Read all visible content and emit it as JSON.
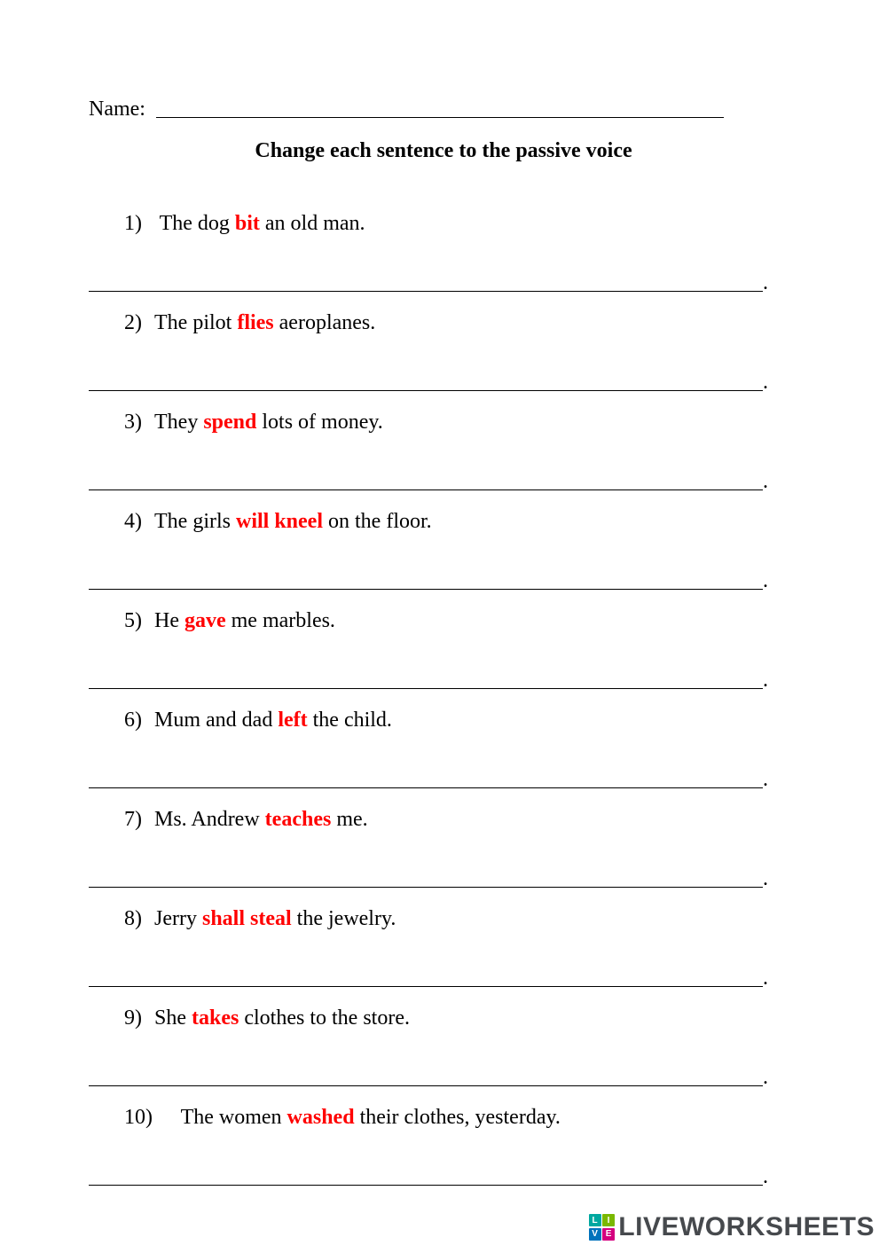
{
  "name_label": "Name:",
  "title": "Change each sentence to the passive voice",
  "verb_color": "#ff0000",
  "text_color": "#000000",
  "background_color": "#ffffff",
  "font_family": "Times New Roman",
  "title_fontsize": 24,
  "body_fontsize": 24,
  "questions": [
    {
      "num": "1)",
      "before": " The dog ",
      "verb": "bit",
      "after": " an old man."
    },
    {
      "num": "2)",
      "before": "The pilot ",
      "verb": "flies",
      "after": " aeroplanes."
    },
    {
      "num": "3)",
      "before": "They ",
      "verb": "spend",
      "after": " lots of money."
    },
    {
      "num": "4)",
      "before": "The girls ",
      "verb": "will kneel",
      "after": " on the floor."
    },
    {
      "num": "5)",
      "before": "He ",
      "verb": "gave",
      "after": " me marbles."
    },
    {
      "num": "6)",
      "before": "Mum and dad ",
      "verb": "left",
      "after": " the child."
    },
    {
      "num": "7)",
      "before": "Ms. Andrew ",
      "verb": "teaches",
      "after": " me."
    },
    {
      "num": "8)",
      "before": "Jerry ",
      "verb": "shall steal",
      "after": " the jewelry."
    },
    {
      "num": "9)",
      "before": "She ",
      "verb": "takes",
      "after": " clothes to the store."
    },
    {
      "num": "10)",
      "before": "     The women ",
      "verb": "washed",
      "after": " their clothes, yesterday."
    }
  ],
  "answer_suffix": ".",
  "watermark": {
    "text": "LIVEWORKSHEETS",
    "logo_letters": [
      "L",
      "I",
      "V",
      "E"
    ],
    "logo_colors": [
      "#00a8a0",
      "#7ab800",
      "#0072bc",
      "#d4007f"
    ],
    "text_color": "#46494d"
  }
}
